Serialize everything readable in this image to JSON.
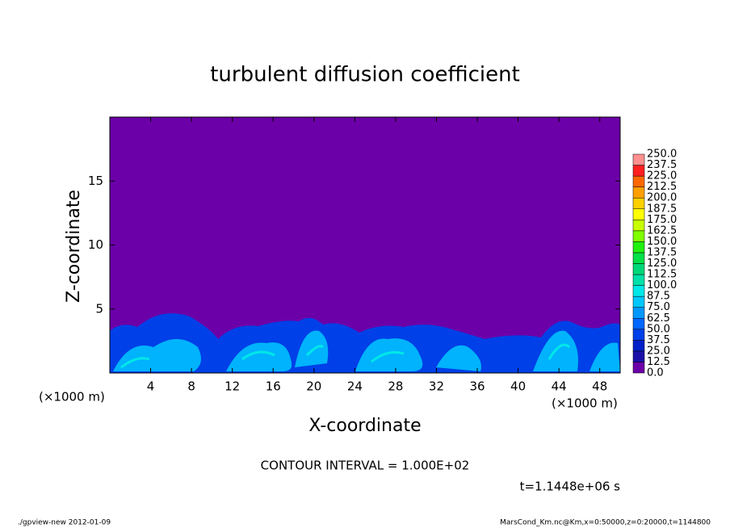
{
  "chart_data": {
    "type": "contour",
    "title": "turbulent diffusion coefficient",
    "x_label": "X-coordinate",
    "y_label": "Z-coordinate",
    "x_unit": "(×1000 m)",
    "y_unit": "(×1000 m)",
    "xlim": [
      0,
      50
    ],
    "ylim": [
      0,
      20
    ],
    "xticks": [
      4,
      8,
      12,
      16,
      20,
      24,
      28,
      32,
      36,
      40,
      44,
      48
    ],
    "yticks": [
      5,
      10,
      15
    ],
    "levels": [
      {
        "value": 0,
        "label": "0.0"
      },
      {
        "value": 12.5,
        "label": "12.5"
      },
      {
        "value": 25,
        "label": "25.0"
      },
      {
        "value": 37.5,
        "label": "37.5"
      },
      {
        "value": 50,
        "label": "50.0"
      },
      {
        "value": 62.5,
        "label": "62.5"
      },
      {
        "value": 75,
        "label": "75.0"
      },
      {
        "value": 87.5,
        "label": "87.5"
      },
      {
        "value": 100,
        "label": "100.0"
      },
      {
        "value": 112.5,
        "label": "112.5"
      },
      {
        "value": 125,
        "label": "125.0"
      },
      {
        "value": 137.5,
        "label": "137.5"
      },
      {
        "value": 150,
        "label": "150.0"
      },
      {
        "value": 162.5,
        "label": "162.5"
      },
      {
        "value": 175,
        "label": "175.0"
      },
      {
        "value": 187.5,
        "label": "187.5"
      },
      {
        "value": 200,
        "label": "200.0"
      },
      {
        "value": 212.5,
        "label": "212.5"
      },
      {
        "value": 225,
        "label": "225.0"
      },
      {
        "value": 237.5,
        "label": "237.5"
      },
      {
        "value": 250,
        "label": "250.0"
      }
    ],
    "colors": [
      "#6c00a8",
      "#1a10a8",
      "#0020c8",
      "#0040e8",
      "#0068ff",
      "#0098ff",
      "#00c8ff",
      "#00e8e8",
      "#00e0a8",
      "#00d878",
      "#00e048",
      "#20f010",
      "#80ff00",
      "#c8ff00",
      "#ffff00",
      "#ffd000",
      "#ffa000",
      "#ff6800",
      "#ff2020",
      "#ff9090"
    ],
    "annotation": "CONTOUR INTERVAL = 1.000E+02",
    "time": "t=1.1448e+06 s",
    "footer_left": "./gpview-new  2012-01-09",
    "footer_right": "MarsCond_Km.nc@Km,x=0:50000,z=0:20000,t=1144800"
  }
}
